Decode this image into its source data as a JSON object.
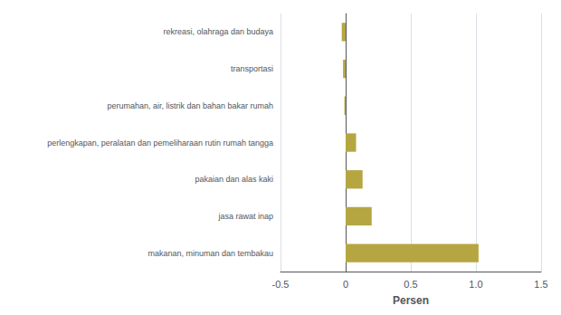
{
  "chart_data": {
    "type": "bar",
    "orientation": "horizontal",
    "categories": [
      "makanan, minuman dan tembakau",
      "jasa rawat inap",
      "pakaian dan alas kaki",
      "perlengkapan, peralatan dan pemeliharaan rutin rumah tangga",
      "perumahan, air, listrik dan bahan bakar rumah",
      "transportasi",
      "rekreasi, olahraga dan budaya"
    ],
    "values": [
      1.02,
      0.2,
      0.13,
      0.08,
      -0.01,
      -0.02,
      -0.03
    ],
    "color": "#b5a642",
    "xlabel": "Persen",
    "xlim": [
      -0.5,
      1.5
    ],
    "xticks": [
      -0.5,
      0,
      0.5,
      {
        "value": 1,
        "label": "1.0"
      },
      1.5
    ],
    "grid": true
  }
}
